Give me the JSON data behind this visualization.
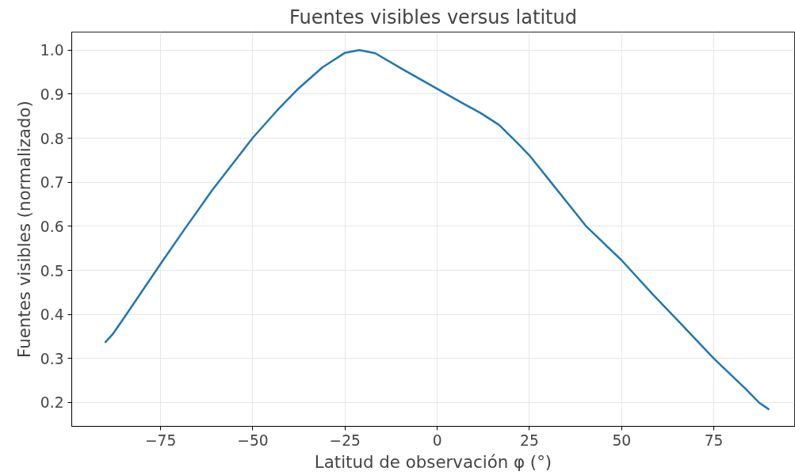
{
  "chart_data": {
    "type": "line",
    "title": "Fuentes visibles versus latitud",
    "xlabel": "Latitud de observación φ (°)",
    "ylabel": "Fuentes visibles (normalizado)",
    "x": [
      -90.1,
      -88,
      -84.7,
      -75,
      -68.3,
      -61.1,
      -50,
      -43.3,
      -37.6,
      -31.1,
      -25,
      -21.1,
      -16.8,
      -9.7,
      -0.4,
      6.1,
      11.8,
      16.8,
      21.9,
      25,
      31.9,
      40.5,
      50,
      58.4,
      65.6,
      75,
      83.5,
      87.4,
      90
    ],
    "series": [
      {
        "color": "#1f77b4",
        "values": [
          0.336,
          0.355,
          0.395,
          0.515,
          0.596,
          0.681,
          0.801,
          0.864,
          0.913,
          0.961,
          0.994,
          1.0,
          0.993,
          0.958,
          0.914,
          0.883,
          0.857,
          0.83,
          0.788,
          0.761,
          0.689,
          0.599,
          0.523,
          0.446,
          0.383,
          0.3,
          0.232,
          0.199,
          0.184
        ]
      }
    ],
    "xlim": [
      -99.1,
      96.9
    ],
    "ylim": [
      0.146,
      1.041
    ],
    "xticks": [
      {
        "value": -75,
        "label": "−75"
      },
      {
        "value": -50,
        "label": "−50"
      },
      {
        "value": -25,
        "label": "−25"
      },
      0,
      25,
      50,
      75
    ],
    "yticks": [
      {
        "value": 0.2,
        "label": "0.2"
      },
      {
        "value": 0.3,
        "label": "0.3"
      },
      {
        "value": 0.4,
        "label": "0.4"
      },
      {
        "value": 0.5,
        "label": "0.5"
      },
      {
        "value": 0.6,
        "label": "0.6"
      },
      {
        "value": 0.7,
        "label": "0.7"
      },
      {
        "value": 0.8,
        "label": "0.8"
      },
      {
        "value": 0.9,
        "label": "0.9"
      },
      {
        "value": 1.0,
        "label": "1.0"
      }
    ],
    "grid": true,
    "marker": "none",
    "line_style": "solid"
  }
}
